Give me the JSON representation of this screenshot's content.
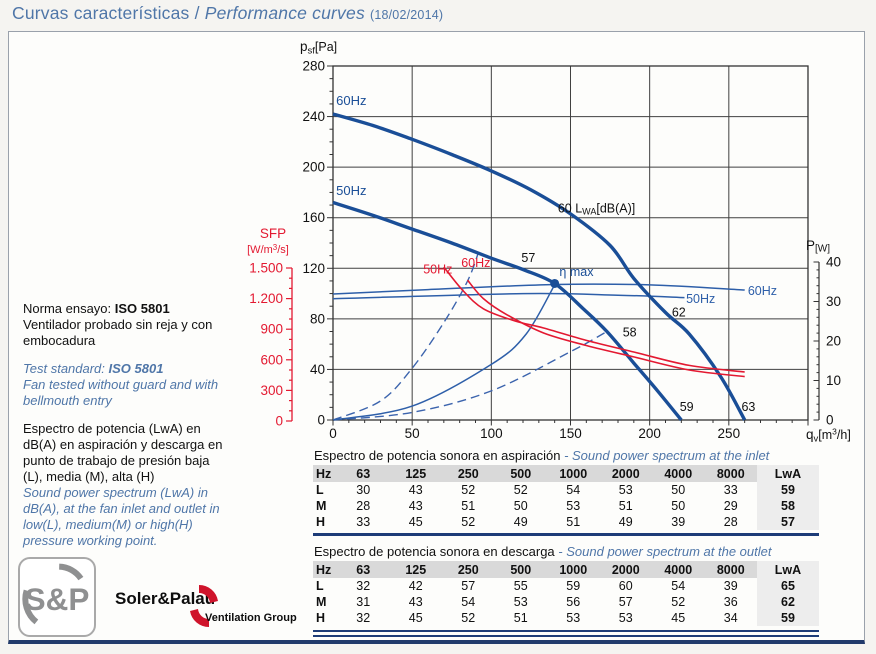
{
  "title": {
    "es": "Curvas características",
    "sep": " / ",
    "en": "Performance curves",
    "date": "(18/02/2014)"
  },
  "colors": {
    "navy": "#1a4e97",
    "blue_thin": "#2e5fa9",
    "blue_dash": "#3c64ad",
    "red": "#e31931",
    "title_blue": "#4f76a8",
    "grid": "#404040",
    "frame": "#333333",
    "table_header_bg": "#d9d9d9",
    "lwa_col_bg": "#ededed",
    "separator_navy": "#1d3c78",
    "logo_gray": "#8f9091",
    "logo_red": "#cf142b"
  },
  "notes": {
    "norma_prefix": "Norma ensayo: ",
    "norma_bold": "ISO 5801",
    "norma_body": "Ventilador probado sin reja y con embocadura",
    "test_prefix": "Test standard: ",
    "test_bold": "ISO 5801",
    "test_body": "Fan tested without guard and with bellmouth entry",
    "spectrum_es": "Espectro de potencia (LwA) en dB(A) en aspiración y descarga en punto de trabajo de presión baja (L), media (M), alta (H)",
    "spectrum_en": "Sound power spectrum (LwA) in dB(A), at the fan inlet and outlet in low(L), medium(M) or high(H) pressure working point."
  },
  "tables": [
    {
      "title_es": "Espectro de potencia sonora en aspiración",
      "title_en": "- Sound power spectrum at the inlet",
      "headers": [
        "Hz",
        "63",
        "125",
        "250",
        "500",
        "1000",
        "2000",
        "4000",
        "8000",
        "LwA"
      ],
      "rows": [
        {
          "label": "L",
          "values": [
            30,
            43,
            52,
            52,
            54,
            53,
            50,
            33
          ],
          "lwa": 59
        },
        {
          "label": "M",
          "values": [
            28,
            43,
            51,
            50,
            53,
            51,
            50,
            29
          ],
          "lwa": 58
        },
        {
          "label": "H",
          "values": [
            33,
            45,
            52,
            49,
            51,
            49,
            39,
            28
          ],
          "lwa": 57
        }
      ]
    },
    {
      "title_es": "Espectro de potencia sonora en descarga",
      "title_en": "- Sound power spectrum at the outlet",
      "headers": [
        "Hz",
        "63",
        "125",
        "250",
        "500",
        "1000",
        "2000",
        "4000",
        "8000",
        "LwA"
      ],
      "rows": [
        {
          "label": "L",
          "values": [
            32,
            42,
            57,
            55,
            59,
            60,
            54,
            39
          ],
          "lwa": 65
        },
        {
          "label": "M",
          "values": [
            31,
            43,
            54,
            53,
            56,
            57,
            52,
            36
          ],
          "lwa": 62
        },
        {
          "label": "H",
          "values": [
            32,
            45,
            52,
            51,
            53,
            53,
            45,
            34
          ],
          "lwa": 59
        }
      ]
    }
  ],
  "logo": {
    "monogram": "S&P",
    "name": "Soler&Palau",
    "group": "Ventilation Group"
  },
  "chart_data": {
    "type": "line",
    "title": "Curvas características / Performance curves",
    "x_axis": {
      "label": "qv[m³/h]",
      "label_parts": [
        "q",
        "v",
        "[m",
        "3",
        "/h]"
      ],
      "min": 0,
      "max": 300,
      "major_ticks": [
        0,
        50,
        100,
        150,
        200,
        250
      ],
      "minor_step": 10
    },
    "y_axis_pressure": {
      "label": "psf[Pa]",
      "label_parts": [
        "p",
        "sf",
        "[Pa]"
      ],
      "min": 0,
      "max": 280,
      "major_ticks": [
        0,
        40,
        80,
        120,
        160,
        200,
        240,
        280
      ],
      "minor_step": 10
    },
    "y_axis_power": {
      "label": "P[W]",
      "label_parts": [
        "P",
        "[W]"
      ],
      "min": 0,
      "max": 40,
      "major_ticks": [
        0,
        10,
        20,
        30,
        40
      ],
      "minor_step": 2
    },
    "y_axis_sfp": {
      "label": "SFP [W/m³/s]",
      "label_line1": "SFP",
      "label_line2_parts": [
        "[W/m",
        "3",
        "/s]"
      ],
      "min": 0,
      "max": 1500,
      "major_ticks": [
        0,
        300,
        600,
        900,
        1200,
        1500
      ],
      "tick_labels": [
        "0",
        "300",
        "600",
        "900",
        "1.200",
        "1.500"
      ],
      "minor_step": 100
    },
    "grid": true,
    "series": [
      {
        "id": "pressure-60hz",
        "label": "60Hz",
        "axis": "pressure",
        "style": "thick",
        "points": [
          [
            0,
            242
          ],
          [
            25,
            233
          ],
          [
            50,
            222
          ],
          [
            75,
            210
          ],
          [
            100,
            197
          ],
          [
            125,
            182
          ],
          [
            150,
            163
          ],
          [
            175,
            138
          ],
          [
            190,
            112
          ],
          [
            210,
            85
          ],
          [
            225,
            68
          ],
          [
            245,
            34
          ],
          [
            260,
            0
          ]
        ]
      },
      {
        "id": "pressure-50hz",
        "label": "50Hz",
        "axis": "pressure",
        "style": "thick",
        "points": [
          [
            0,
            172
          ],
          [
            25,
            162
          ],
          [
            50,
            151
          ],
          [
            75,
            140
          ],
          [
            100,
            128
          ],
          [
            120,
            119
          ],
          [
            140,
            108
          ],
          [
            158,
            88
          ],
          [
            173,
            70
          ],
          [
            190,
            45
          ],
          [
            205,
            23
          ],
          [
            220,
            0
          ]
        ]
      },
      {
        "id": "power-60hz",
        "label": "60Hz",
        "axis": "power",
        "style": "thin",
        "points": [
          [
            0,
            31.9
          ],
          [
            60,
            33
          ],
          [
            140,
            34.3
          ],
          [
            200,
            34.2
          ],
          [
            260,
            32.9
          ]
        ]
      },
      {
        "id": "power-50hz",
        "label": "50Hz",
        "axis": "power",
        "style": "thin",
        "points": [
          [
            0,
            30.7
          ],
          [
            120,
            32
          ],
          [
            180,
            31.6
          ],
          [
            222,
            31
          ]
        ]
      },
      {
        "id": "sfp-50hz",
        "label": "50Hz",
        "axis": "sfp",
        "style": "red",
        "points": [
          [
            70,
            1510
          ],
          [
            82,
            1280
          ],
          [
            95,
            1100
          ],
          [
            115,
            980
          ],
          [
            133,
            912
          ],
          [
            160,
            790
          ],
          [
            190,
            676
          ],
          [
            225,
            545
          ],
          [
            260,
            480
          ]
        ]
      },
      {
        "id": "sfp-60hz",
        "label": "60Hz",
        "axis": "sfp",
        "style": "red",
        "points": [
          [
            85,
            1380
          ],
          [
            95,
            1200
          ],
          [
            110,
            1040
          ],
          [
            133,
            863
          ],
          [
            160,
            740
          ],
          [
            190,
            628
          ],
          [
            225,
            500
          ],
          [
            260,
            435
          ]
        ]
      },
      {
        "id": "system-high",
        "label": "H",
        "axis": "pressure",
        "style": "dash",
        "points": [
          [
            0,
            0
          ],
          [
            30,
            15
          ],
          [
            50,
            41
          ],
          [
            70,
            77
          ],
          [
            85,
            110
          ],
          [
            92,
            133
          ]
        ]
      },
      {
        "id": "system-eta",
        "label": "η",
        "axis": "pressure",
        "style": "thin",
        "points": [
          [
            0,
            0
          ],
          [
            50,
            11
          ],
          [
            100,
            44
          ],
          [
            122,
            68
          ],
          [
            140,
            107
          ]
        ]
      },
      {
        "id": "system-low",
        "label": "L",
        "axis": "pressure",
        "style": "dash",
        "points": [
          [
            0,
            0
          ],
          [
            50,
            6
          ],
          [
            100,
            23
          ],
          [
            150,
            54
          ],
          [
            173,
            70
          ]
        ]
      }
    ],
    "eta_max_point": {
      "q": 140,
      "p": 108,
      "label": "η max"
    },
    "annotations": [
      {
        "text": "60Hz",
        "q": 2,
        "p": 249,
        "axis": "pressure",
        "color": "navy",
        "size": 13
      },
      {
        "text": "50Hz",
        "q": 2,
        "p": 178,
        "axis": "pressure",
        "color": "navy",
        "size": 13
      },
      {
        "text": "57",
        "q": 119,
        "p": 125,
        "axis": "pressure",
        "color": "black"
      },
      {
        "text": "58",
        "q": 183,
        "p": 66,
        "axis": "pressure",
        "color": "black"
      },
      {
        "text": "59",
        "q": 219,
        "p": 7,
        "axis": "pressure",
        "color": "black"
      },
      {
        "text": "62",
        "q": 214,
        "p": 82,
        "axis": "pressure",
        "color": "black"
      },
      {
        "text": "63",
        "q": 258,
        "p": 7,
        "axis": "pressure",
        "color": "black"
      },
      {
        "text": "60 LWA[dB(A)]",
        "parts": [
          "60 L",
          "WA",
          "[dB(A)]"
        ],
        "q": 142,
        "p": 164,
        "axis": "pressure",
        "color": "black"
      },
      {
        "text": "50Hz",
        "q": 57,
        "p": 116,
        "axis": "pressure",
        "color": "red"
      },
      {
        "text": "60Hz",
        "q": 81,
        "p": 121,
        "axis": "pressure",
        "color": "red"
      },
      {
        "text": "60Hz",
        "q": 262,
        "w": 31.6,
        "axis": "power",
        "color": "blue"
      },
      {
        "text": "50Hz",
        "q": 223,
        "w": 29.6,
        "axis": "power",
        "color": "blue"
      },
      {
        "text": "η max",
        "q": 143,
        "p": 114,
        "axis": "pressure",
        "color": "navy"
      }
    ]
  }
}
